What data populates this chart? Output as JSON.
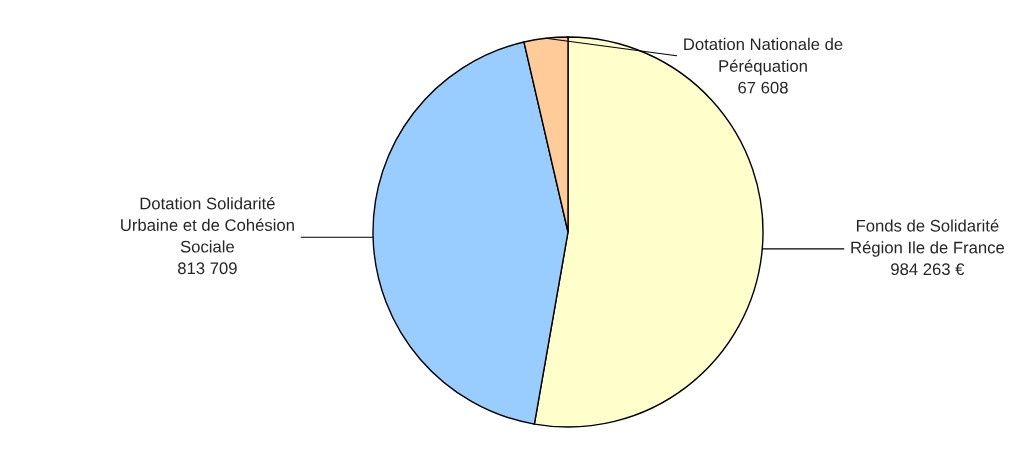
{
  "chart_data": {
    "type": "pie",
    "categories": [
      "Fonds de Solidarité\nRégion Ile de France",
      "Dotation Solidarité\nUrbaine et de Cohésion\nSociale",
      "Dotation Nationale de\nPéréquation"
    ],
    "values": [
      984263,
      813709,
      67608
    ],
    "value_labels": [
      "984 263 €",
      "813 709",
      "67 608"
    ],
    "colors": [
      "#ffffcc",
      "#99ccff",
      "#ffcc99"
    ],
    "legend": false
  }
}
